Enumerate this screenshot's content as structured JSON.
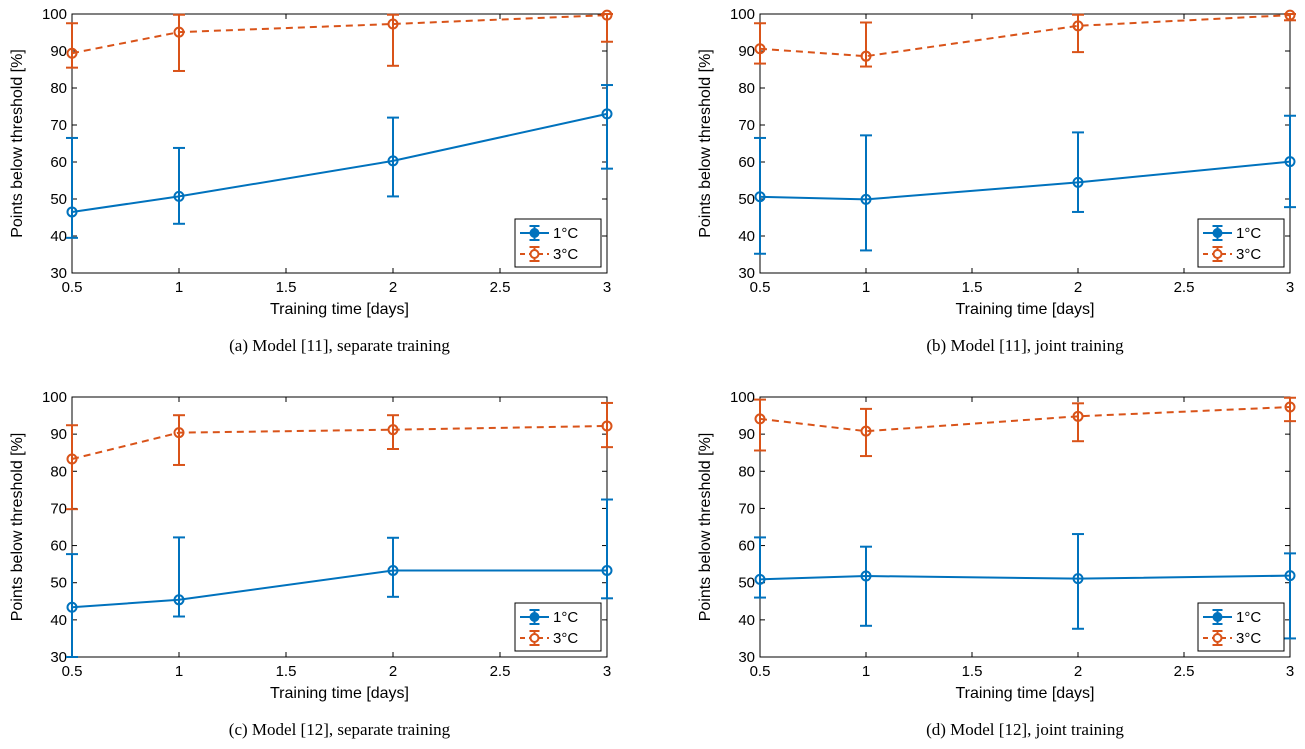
{
  "figure": {
    "colors": {
      "series_1": "#0072BD",
      "series_2": "#D95319"
    }
  },
  "chart_data": [
    {
      "type": "line",
      "caption": "(a) Model [11], separate training",
      "xlabel": "Training time [days]",
      "ylabel": "Points below threshold [%]",
      "xlim": [
        0.5,
        3
      ],
      "ylim": [
        30,
        100
      ],
      "xticks": [
        0.5,
        1,
        1.5,
        2,
        2.5,
        3
      ],
      "xtick_labels": [
        "0.5",
        "1",
        "1.5",
        "2",
        "2.5",
        "3"
      ],
      "yticks": [
        30,
        40,
        50,
        60,
        70,
        80,
        90,
        100
      ],
      "ytick_labels": [
        "30",
        "40",
        "50",
        "60",
        "70",
        "80",
        "90",
        "100"
      ],
      "grid": false,
      "legend_position": "bottom-right",
      "x": [
        0.5,
        1,
        2,
        3
      ],
      "series": [
        {
          "name": "1°C",
          "color": "#0072BD",
          "style": "solid",
          "values": [
            46.5,
            50.7,
            60.3,
            73
          ],
          "lower": [
            39.5,
            43.3,
            50.7,
            58.2
          ],
          "upper": [
            66.5,
            63.8,
            72,
            80.8
          ]
        },
        {
          "name": "3°C",
          "color": "#D95319",
          "style": "dashed",
          "values": [
            89.4,
            95.1,
            97.3,
            99.7
          ],
          "lower": [
            85.5,
            84.6,
            86,
            92.5
          ],
          "upper": [
            97.5,
            99.8,
            99.8,
            100
          ]
        }
      ]
    },
    {
      "type": "line",
      "caption": "(b) Model [11], joint training",
      "xlabel": "Training time [days]",
      "ylabel": "Points below threshold [%]",
      "xlim": [
        0.5,
        3
      ],
      "ylim": [
        30,
        100
      ],
      "xticks": [
        0.5,
        1,
        1.5,
        2,
        2.5,
        3
      ],
      "xtick_labels": [
        "0.5",
        "1",
        "1.5",
        "2",
        "2.5",
        "3"
      ],
      "yticks": [
        30,
        40,
        50,
        60,
        70,
        80,
        90,
        100
      ],
      "ytick_labels": [
        "30",
        "40",
        "50",
        "60",
        "70",
        "80",
        "90",
        "100"
      ],
      "grid": false,
      "legend_position": "bottom-right",
      "x": [
        0.5,
        1,
        2,
        3
      ],
      "series": [
        {
          "name": "1°C",
          "color": "#0072BD",
          "style": "solid",
          "values": [
            50.6,
            49.9,
            54.5,
            60.1
          ],
          "lower": [
            35.2,
            36.1,
            46.5,
            47.8
          ],
          "upper": [
            66.5,
            67.2,
            68,
            72.5
          ]
        },
        {
          "name": "3°C",
          "color": "#D95319",
          "style": "dashed",
          "values": [
            90.6,
            88.6,
            96.8,
            99.7
          ],
          "lower": [
            86.6,
            85.8,
            89.7,
            98.3
          ],
          "upper": [
            97.5,
            97.7,
            99.8,
            100
          ]
        }
      ]
    },
    {
      "type": "line",
      "caption": "(c) Model [12], separate training",
      "xlabel": "Training time [days]",
      "ylabel": "Points below threshold [%]",
      "xlim": [
        0.5,
        3
      ],
      "ylim": [
        30,
        100
      ],
      "xticks": [
        0.5,
        1,
        1.5,
        2,
        2.5,
        3
      ],
      "xtick_labels": [
        "0.5",
        "1",
        "1.5",
        "2",
        "2.5",
        "3"
      ],
      "yticks": [
        30,
        40,
        50,
        60,
        70,
        80,
        90,
        100
      ],
      "ytick_labels": [
        "30",
        "40",
        "50",
        "60",
        "70",
        "80",
        "90",
        "100"
      ],
      "grid": false,
      "legend_position": "bottom-right",
      "x": [
        0.5,
        1,
        2,
        3
      ],
      "series": [
        {
          "name": "1°C",
          "color": "#0072BD",
          "style": "solid",
          "values": [
            43.4,
            45.4,
            53.3,
            53.3
          ],
          "lower": [
            30,
            40.9,
            46.2,
            45.8
          ],
          "upper": [
            57.7,
            62.2,
            62.1,
            72.4
          ]
        },
        {
          "name": "3°C",
          "color": "#D95319",
          "style": "dashed",
          "values": [
            83.3,
            90.4,
            91.2,
            92.2
          ],
          "lower": [
            69.8,
            81.7,
            86,
            86.5
          ],
          "upper": [
            92.4,
            95.1,
            95.1,
            98.4
          ]
        }
      ]
    },
    {
      "type": "line",
      "caption": "(d) Model [12], joint training",
      "xlabel": "Training time [days]",
      "ylabel": "Points below threshold [%]",
      "xlim": [
        0.5,
        3
      ],
      "ylim": [
        30,
        100
      ],
      "xticks": [
        0.5,
        1,
        1.5,
        2,
        2.5,
        3
      ],
      "xtick_labels": [
        "0.5",
        "1",
        "1.5",
        "2",
        "2.5",
        "3"
      ],
      "yticks": [
        30,
        40,
        50,
        60,
        70,
        80,
        90,
        100
      ],
      "ytick_labels": [
        "30",
        "40",
        "50",
        "60",
        "70",
        "80",
        "90",
        "100"
      ],
      "grid": false,
      "legend_position": "bottom-right",
      "x": [
        0.5,
        1,
        2,
        3
      ],
      "series": [
        {
          "name": "1°C",
          "color": "#0072BD",
          "style": "solid",
          "values": [
            50.9,
            51.8,
            51.1,
            51.9
          ],
          "lower": [
            46,
            38.4,
            37.6,
            35
          ],
          "upper": [
            62.2,
            59.7,
            63.1,
            57.9
          ]
        },
        {
          "name": "3°C",
          "color": "#D95319",
          "style": "dashed",
          "values": [
            94.1,
            90.8,
            94.8,
            97.3
          ],
          "lower": [
            85.6,
            84.1,
            88.1,
            93.5
          ],
          "upper": [
            99.3,
            96.8,
            98.3,
            99.8
          ]
        }
      ]
    }
  ]
}
